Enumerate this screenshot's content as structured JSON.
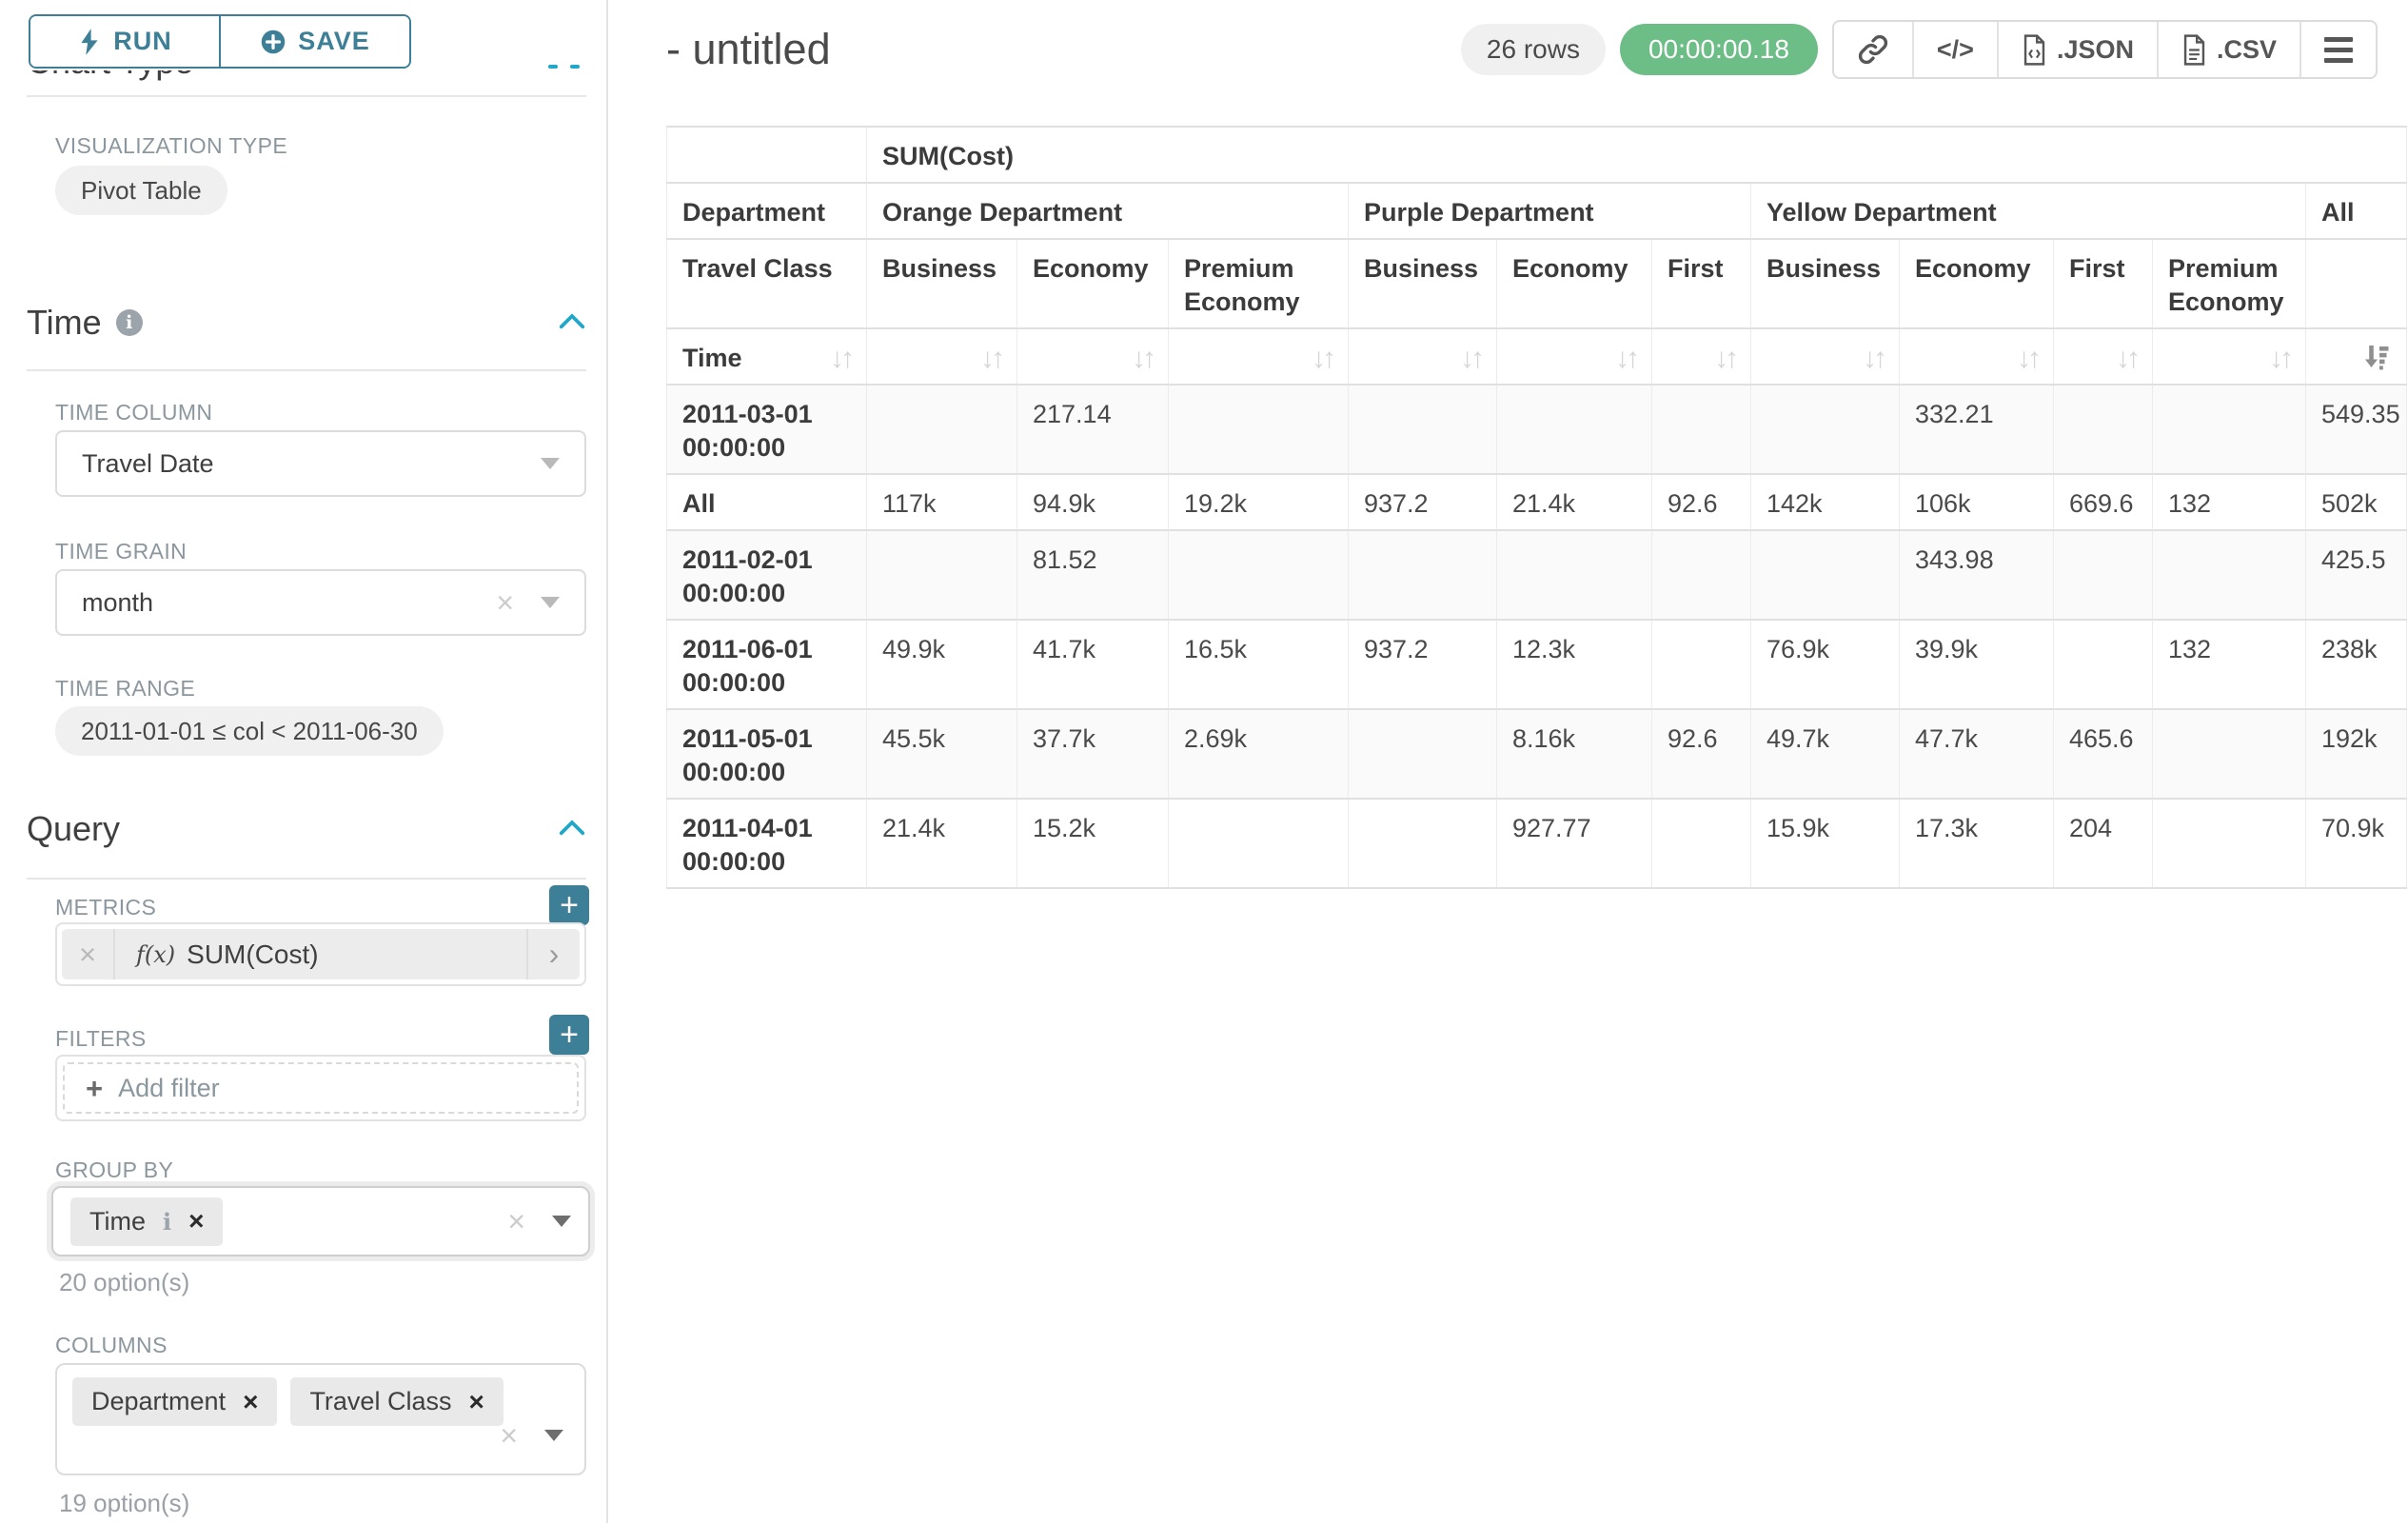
{
  "colors": {
    "primary_teal": "#3d7f96",
    "accent_blue": "#20a7c9",
    "success_green": "#6dbd87",
    "pill_gray": "#f0f0f0"
  },
  "sidebar": {
    "run_label": "RUN",
    "save_label": "SAVE",
    "chart_type_heading": "Chart Type",
    "visualization_type_label": "VISUALIZATION TYPE",
    "visualization_type_value": "Pivot Table",
    "time": {
      "title": "Time",
      "time_column_label": "TIME COLUMN",
      "time_column_value": "Travel Date",
      "time_grain_label": "TIME GRAIN",
      "time_grain_value": "month",
      "time_range_label": "TIME RANGE",
      "time_range_value": "2011-01-01 ≤ col < 2011-06-30"
    },
    "query": {
      "title": "Query",
      "metrics_label": "METRICS",
      "metric_fx": "f(x)",
      "metric_value": "SUM(Cost)",
      "filters_label": "FILTERS",
      "add_filter_label": "Add filter",
      "group_by_label": "GROUP BY",
      "group_by_values": [
        "Time"
      ],
      "group_by_options_hint": "20 option(s)",
      "columns_label": "COLUMNS",
      "columns_values": [
        "Department",
        "Travel Class"
      ],
      "columns_options_hint": "19 option(s)"
    }
  },
  "header": {
    "title": "- untitled",
    "row_count": "26 rows",
    "timer": "00:00:00.18",
    "export_json_label": ".JSON",
    "export_csv_label": ".CSV",
    "code_label": "</>"
  },
  "pivot": {
    "metric_header": "SUM(Cost)",
    "department_label": "Department",
    "travel_class_label": "Travel Class",
    "time_label": "Time",
    "sorted_column": "All",
    "sort_direction": "desc",
    "groups": [
      {
        "name": "Orange Department",
        "classes": [
          "Business",
          "Economy",
          "Premium Economy"
        ]
      },
      {
        "name": "Purple Department",
        "classes": [
          "Business",
          "Economy",
          "First"
        ]
      },
      {
        "name": "Yellow Department",
        "classes": [
          "Business",
          "Economy",
          "First",
          "Premium Economy"
        ]
      },
      {
        "name": "All",
        "classes": [
          ""
        ]
      }
    ],
    "rows": [
      {
        "label": "2011-03-01 00:00:00",
        "values": [
          "",
          "217.14",
          "",
          "",
          "",
          "",
          "",
          "332.21",
          "",
          "",
          "549.35"
        ]
      },
      {
        "label": "All",
        "values": [
          "117k",
          "94.9k",
          "19.2k",
          "937.2",
          "21.4k",
          "92.6",
          "142k",
          "106k",
          "669.6",
          "132",
          "502k"
        ]
      },
      {
        "label": "2011-02-01 00:00:00",
        "values": [
          "",
          "81.52",
          "",
          "",
          "",
          "",
          "",
          "343.98",
          "",
          "",
          "425.5"
        ]
      },
      {
        "label": "2011-06-01 00:00:00",
        "values": [
          "49.9k",
          "41.7k",
          "16.5k",
          "937.2",
          "12.3k",
          "",
          "76.9k",
          "39.9k",
          "",
          "132",
          "238k"
        ]
      },
      {
        "label": "2011-05-01 00:00:00",
        "values": [
          "45.5k",
          "37.7k",
          "2.69k",
          "",
          "8.16k",
          "92.6",
          "49.7k",
          "47.7k",
          "465.6",
          "",
          "192k"
        ]
      },
      {
        "label": "2011-04-01 00:00:00",
        "values": [
          "21.4k",
          "15.2k",
          "",
          "",
          "927.77",
          "",
          "15.9k",
          "17.3k",
          "204",
          "",
          "70.9k"
        ]
      }
    ]
  }
}
